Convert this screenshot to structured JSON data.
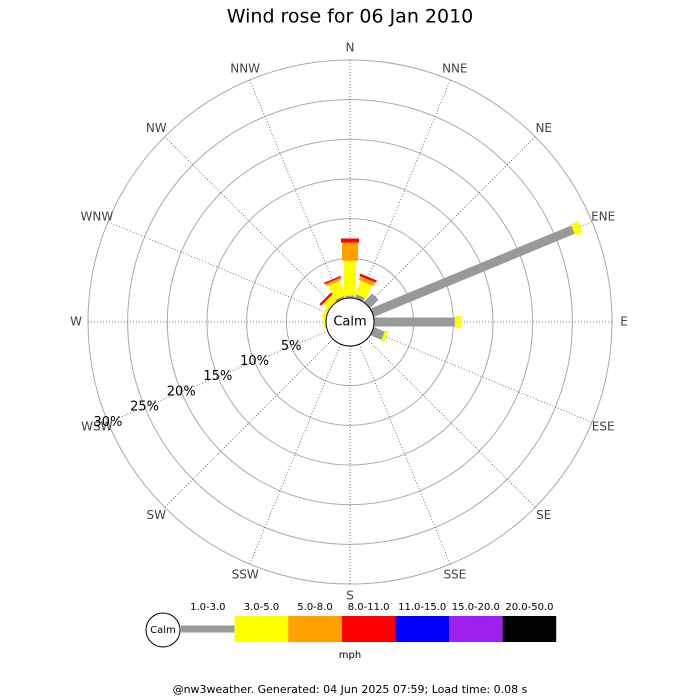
{
  "chart_data": {
    "type": "windrose",
    "title": "Wind rose for 06 Jan 2010",
    "categories": [
      "N",
      "NNE",
      "NE",
      "ENE",
      "E",
      "ESE",
      "SE",
      "SSE",
      "S",
      "SSW",
      "SW",
      "WSW",
      "W",
      "WNW",
      "NW",
      "NNW"
    ],
    "rlim": [
      0,
      30
    ],
    "rticks": [
      {
        "value": 5,
        "label": "5%"
      },
      {
        "value": 10,
        "label": "10%"
      },
      {
        "value": 15,
        "label": "15%"
      },
      {
        "value": 20,
        "label": "20%"
      },
      {
        "value": 25,
        "label": "25%"
      },
      {
        "value": 30,
        "label": "30%"
      }
    ],
    "calm_label": "Calm",
    "unit": "mph",
    "series": [
      {
        "name": "1.0-3.0",
        "color": "#999999",
        "values": [
          0.3,
          0.5,
          1.5,
          27.4,
          10.2,
          1.5,
          0,
          0,
          0,
          0,
          0,
          0,
          0,
          0,
          0,
          0.3
        ]
      },
      {
        "name": "3.0-5.0",
        "color": "#ffff00",
        "values": [
          4.4,
          1.8,
          0,
          1,
          0.8,
          0.4,
          0,
          0,
          0,
          0,
          0,
          0,
          0.3,
          0.5,
          1,
          2
        ]
      },
      {
        "name": "5.0-8.0",
        "color": "#ffa000",
        "values": [
          2.3,
          0.5,
          0,
          0,
          0,
          0,
          0,
          0,
          0,
          0,
          0,
          0,
          0,
          0,
          0,
          0.3
        ]
      },
      {
        "name": "8.0-11.0",
        "color": "#ff0000",
        "values": [
          0.5,
          0.3,
          0,
          0,
          0,
          0,
          0,
          0,
          0,
          0,
          0,
          0,
          0,
          0,
          0.3,
          0.2
        ]
      },
      {
        "name": "11.0-15.0",
        "color": "#0000ff",
        "values": [
          0,
          0,
          0,
          0,
          0,
          0,
          0,
          0,
          0,
          0,
          0,
          0,
          0,
          0,
          0,
          0
        ]
      },
      {
        "name": "15.0-20.0",
        "color": "#a020f0",
        "values": [
          0,
          0,
          0,
          0,
          0,
          0,
          0,
          0,
          0,
          0,
          0,
          0,
          0,
          0,
          0,
          0
        ]
      },
      {
        "name": "20.0-50.0",
        "color": "#000000",
        "values": [
          0,
          0,
          0,
          0,
          0,
          0,
          0,
          0,
          0,
          0,
          0,
          0,
          0,
          0,
          0,
          0
        ]
      }
    ]
  },
  "footer": "@nw3weather. Generated: 04 Jun 2025 07:59; Load time: 0.08 s"
}
